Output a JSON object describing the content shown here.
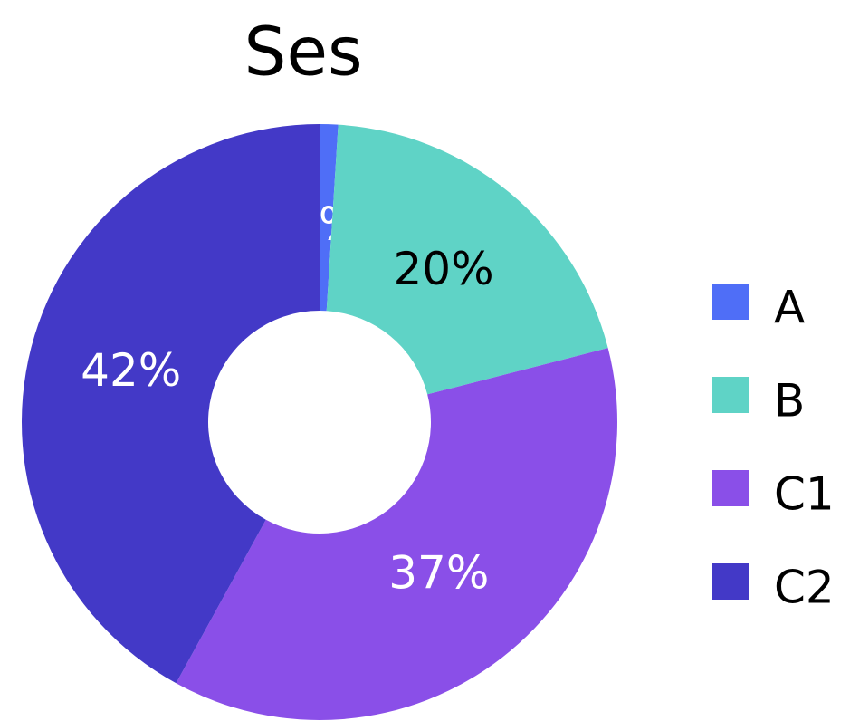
{
  "chart_data": {
    "type": "pie",
    "title": "Ses",
    "categories": [
      "A",
      "B",
      "C1",
      "C2"
    ],
    "values": [
      1,
      20,
      37,
      42
    ],
    "value_labels": [
      "1%",
      "20%",
      "37%",
      "42%"
    ],
    "colors": [
      "#4f6ef7",
      "#5fd3c6",
      "#8a4fe8",
      "#4339c7"
    ],
    "label_colors": [
      "#ffffff",
      "#000000",
      "#ffffff",
      "#ffffff"
    ],
    "legend": "right"
  }
}
